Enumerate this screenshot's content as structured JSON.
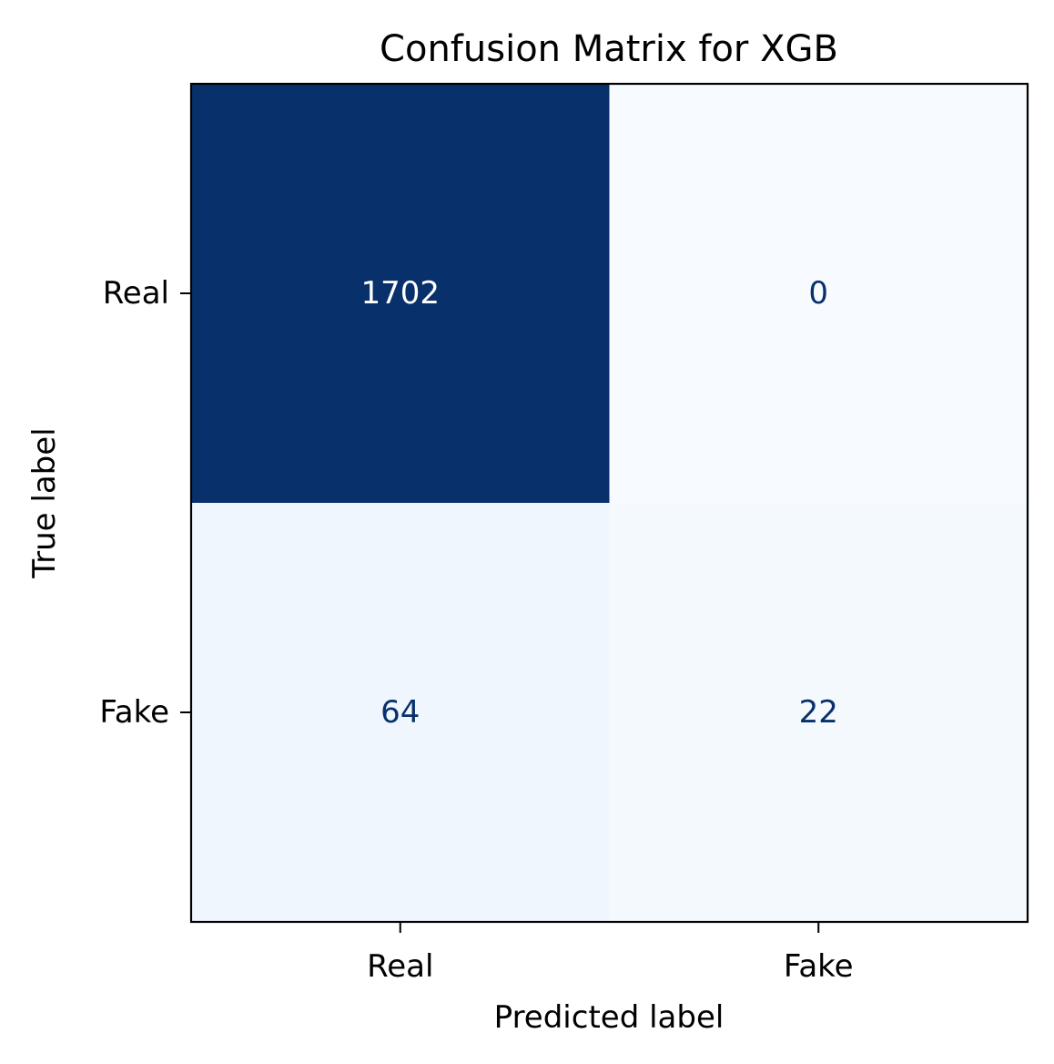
{
  "chart_data": {
    "type": "heatmap",
    "title": "Confusion Matrix for XGB",
    "xlabel": "Predicted label",
    "ylabel": "True label",
    "x_categories": [
      "Real",
      "Fake"
    ],
    "y_categories": [
      "Real",
      "Fake"
    ],
    "values": [
      [
        1702,
        0
      ],
      [
        64,
        22
      ]
    ],
    "colormap": "Blues",
    "value_range": [
      0,
      1702
    ],
    "colors": {
      "high": "#08306b",
      "low": "#f7fbff",
      "dark_text": "#08306b",
      "light_text": "#ffffff"
    },
    "grid": false,
    "legend": "none"
  }
}
